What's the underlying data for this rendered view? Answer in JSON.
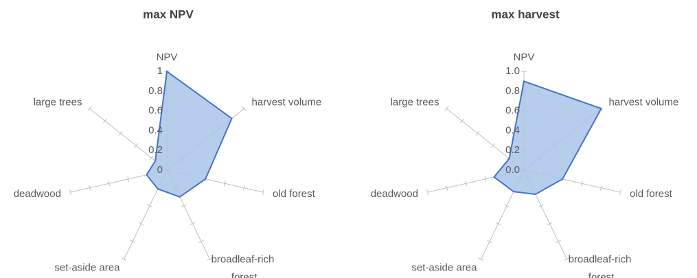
{
  "chart_data": [
    {
      "type": "radar",
      "title": "max NPV",
      "categories": [
        "NPV",
        "harvest volume",
        "old forest",
        "broadleaf-rich forest",
        "set-aside area",
        "deadwood",
        "large trees"
      ],
      "values": [
        1,
        0.84,
        0.4,
        0.3,
        0.21,
        0.21,
        0.15
      ],
      "color": "#4472c4",
      "rlim": [
        0,
        1
      ],
      "rticks": [
        0,
        0.2,
        0.4,
        0.6,
        0.8,
        1
      ]
    },
    {
      "type": "radar",
      "title": "max harvest",
      "categories": [
        "NPV",
        "harvest volume",
        "old forest",
        "broadleaf-rich forest",
        "set-aside area",
        "deadwood",
        "large trees"
      ],
      "values": [
        0.9,
        1,
        0.4,
        0.27,
        0.24,
        0.31,
        0.19
      ],
      "color": "#4472c4",
      "rlim": [
        0,
        1
      ],
      "rticks": [
        {
          "value": 0,
          "label": "0.0"
        },
        0.2,
        0.4,
        0.6,
        0.8,
        {
          "value": 1,
          "label": "1.0"
        }
      ]
    }
  ]
}
